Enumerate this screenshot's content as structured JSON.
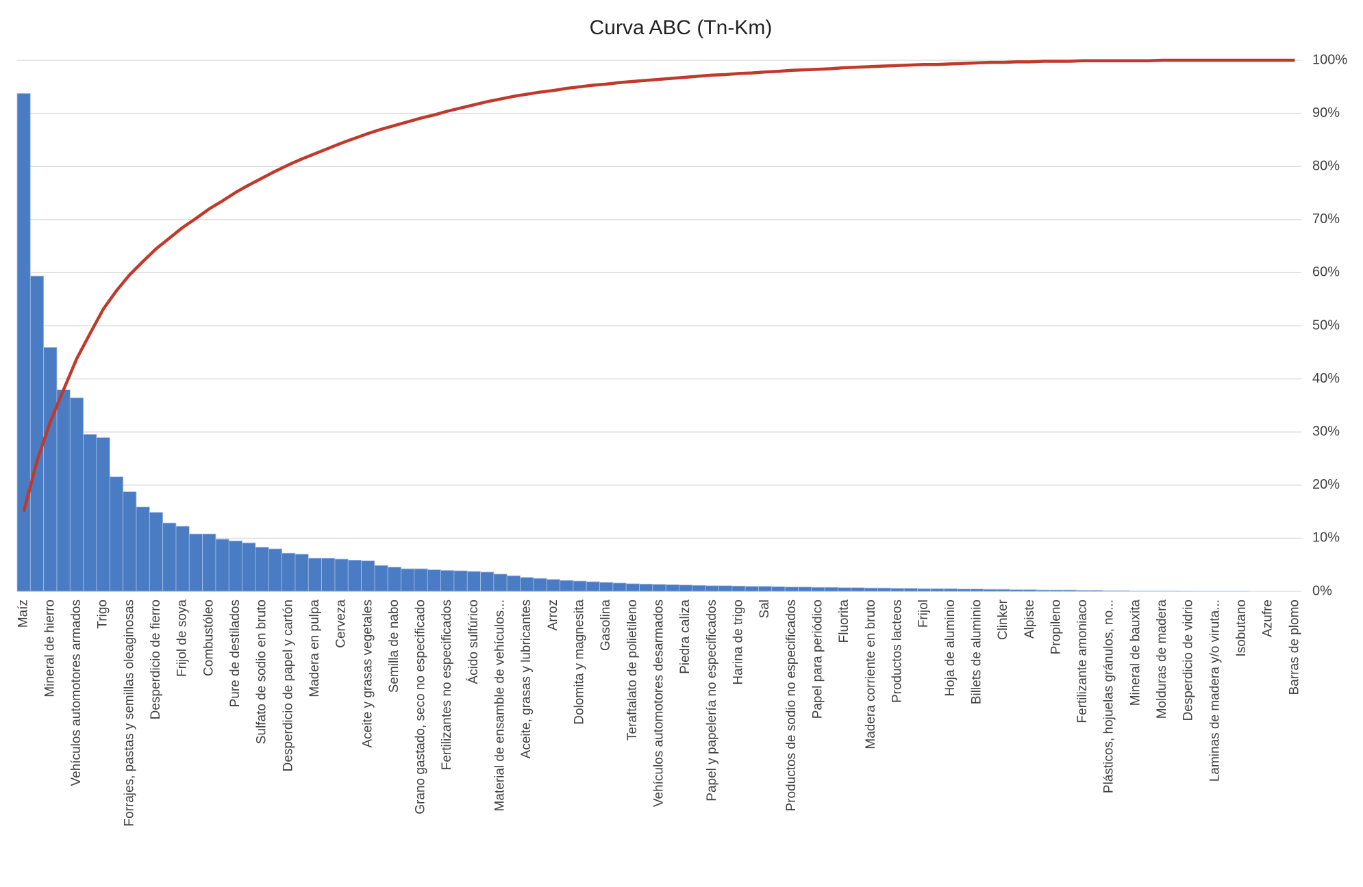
{
  "chart_data": {
    "type": "bar",
    "title": "Curva ABC (Tn-Km)",
    "categories": [
      "Maíz",
      null,
      "Mineral de hierro",
      null,
      "Vehículos automotores armados",
      null,
      "Trigo",
      null,
      "Forrajes, pastas y semillas oleaginosas",
      null,
      "Desperdicio de fierro",
      null,
      "Frijol de soya",
      null,
      "Combustóleo",
      null,
      "Pure de destilados",
      null,
      "Sulfato de sodio en bruto",
      null,
      "Desperdicio de papel y cartón",
      null,
      "Madera en pulpa",
      null,
      "Cerveza",
      null,
      "Aceite y grasas vegetales",
      null,
      "Semilla de nabo",
      null,
      "Grano gastado, seco no especificado",
      null,
      "Fertilizantes no especificados",
      null,
      "Ácido sulfúrico",
      null,
      "Material de ensamble de vehículos...",
      null,
      "Aceite, grasas y lubricantes",
      null,
      "Arroz",
      null,
      "Dolomita y magnesita",
      null,
      "Gasolina",
      null,
      "Teraftalato de polietileno",
      null,
      "Vehículos automotores desarmados",
      null,
      "Piedra caliza",
      null,
      "Papel y papelería no especificados",
      null,
      "Harina de trigo",
      null,
      "Sal",
      null,
      "Productos de sodio no especificados",
      null,
      "Papel para periódico",
      null,
      "Fluorita",
      null,
      "Madera corriente en bruto",
      null,
      "Productos lacteos",
      null,
      "Frijol",
      null,
      "Hoja de aluminio",
      null,
      "Billets de aluminio",
      null,
      "Clinker",
      null,
      "Alpiste",
      null,
      "Propileno",
      null,
      "Fertilizante amoniaco",
      null,
      "Plásticos, hojuelas gránulos, no...",
      null,
      "Mineral de bauxita",
      null,
      "Molduras de madera",
      null,
      "Desperdicio de vidrio",
      null,
      "Laminas de madera y/o viruta...",
      null,
      "Isobutano",
      null,
      "Azufre",
      null,
      "Barras de plomo"
    ],
    "series": [
      {
        "type": "bar",
        "color": "#4a7cc4",
        "values": [
          15,
          9.5,
          7.35,
          6.07,
          5.83,
          4.73,
          4.63,
          3.45,
          3.0,
          2.54,
          2.38,
          2.06,
          1.96,
          1.73,
          1.73,
          1.57,
          1.52,
          1.46,
          1.33,
          1.28,
          1.15,
          1.12,
          1.0,
          1.0,
          0.97,
          0.94,
          0.92,
          0.78,
          0.73,
          0.68,
          0.68,
          0.65,
          0.63,
          0.62,
          0.6,
          0.58,
          0.52,
          0.47,
          0.42,
          0.39,
          0.36,
          0.33,
          0.31,
          0.29,
          0.27,
          0.25,
          0.23,
          0.22,
          0.21,
          0.2,
          0.19,
          0.18,
          0.17,
          0.17,
          0.16,
          0.15,
          0.15,
          0.14,
          0.13,
          0.13,
          0.12,
          0.12,
          0.11,
          0.11,
          0.1,
          0.1,
          0.09,
          0.09,
          0.08,
          0.08,
          0.08,
          0.07,
          0.07,
          0.06,
          0.06,
          0.05,
          0.05,
          0.04,
          0.04,
          0.04,
          0.03,
          0.03,
          0.02,
          0.02,
          0.01,
          0.01,
          0.01,
          0.01,
          0.004,
          0.002,
          0.002,
          0.001,
          0.001,
          0,
          0,
          0,
          0
        ]
      },
      {
        "type": "line",
        "axis": "y2",
        "color": "#c0392b",
        "values": [
          15,
          24.5,
          31.9,
          37.9,
          43.8,
          48.5,
          53.1,
          56.6,
          59.6,
          62.1,
          64.5,
          66.5,
          68.5,
          70.2,
          72.0,
          73.5,
          75.1,
          76.5,
          77.8,
          79.1,
          80.3,
          81.4,
          82.4,
          83.4,
          84.4,
          85.3,
          86.2,
          87.0,
          87.7,
          88.4,
          89.1,
          89.7,
          90.4,
          91.0,
          91.6,
          92.2,
          92.7,
          93.2,
          93.6,
          94.0,
          94.3,
          94.7,
          95.0,
          95.3,
          95.5,
          95.8,
          96.0,
          96.2,
          96.4,
          96.6,
          96.8,
          97.0,
          97.2,
          97.3,
          97.5,
          97.6,
          97.8,
          97.9,
          98.1,
          98.2,
          98.3,
          98.4,
          98.6,
          98.7,
          98.8,
          98.9,
          99.0,
          99.1,
          99.2,
          99.2,
          99.3,
          99.4,
          99.5,
          99.6,
          99.6,
          99.7,
          99.7,
          99.8,
          99.8,
          99.8,
          99.9,
          99.9,
          99.9,
          99.9,
          99.9,
          99.9,
          100,
          100,
          100,
          100,
          100,
          100,
          100,
          100,
          100,
          100,
          100
        ]
      }
    ],
    "ylim": [
      0,
      16
    ],
    "y2lim": [
      0,
      100
    ],
    "y2ticks": [
      {
        "value": 0,
        "label": "0%"
      },
      {
        "value": 10,
        "label": "10%"
      },
      {
        "value": 20,
        "label": "20%"
      },
      {
        "value": 30,
        "label": "30%"
      },
      {
        "value": 40,
        "label": "40%"
      },
      {
        "value": 50,
        "label": "50%"
      },
      {
        "value": 60,
        "label": "60%"
      },
      {
        "value": 70,
        "label": "70%"
      },
      {
        "value": 80,
        "label": "80%"
      },
      {
        "value": 90,
        "label": "90%"
      },
      {
        "value": 100,
        "label": "100%"
      }
    ],
    "grid": true
  }
}
